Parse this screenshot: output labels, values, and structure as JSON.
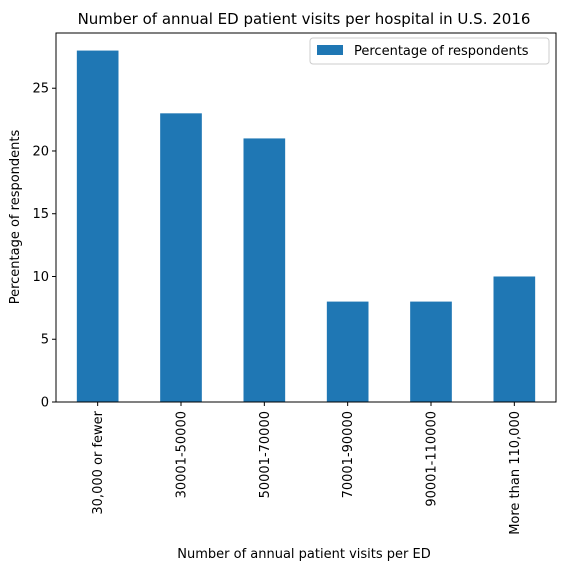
{
  "chart_data": {
    "type": "bar",
    "title": "Number of annual ED patient visits per hospital in U.S. 2016",
    "xlabel": "Number of annual patient visits per ED",
    "ylabel": "Percentage of respondents",
    "categories": [
      "30,000 or fewer",
      "30001-50000",
      "50001-70000",
      "70001-90000",
      "90001-110000",
      "More than 110,000"
    ],
    "series": [
      {
        "name": "Percentage of respondents",
        "values": [
          28,
          23,
          21,
          8,
          8,
          10
        ],
        "color": "#1f77b4"
      }
    ],
    "ylim": [
      0,
      29.4
    ],
    "yticks": [
      0,
      5,
      10,
      15,
      20,
      25
    ],
    "grid": false,
    "legend_position": "top-right"
  }
}
